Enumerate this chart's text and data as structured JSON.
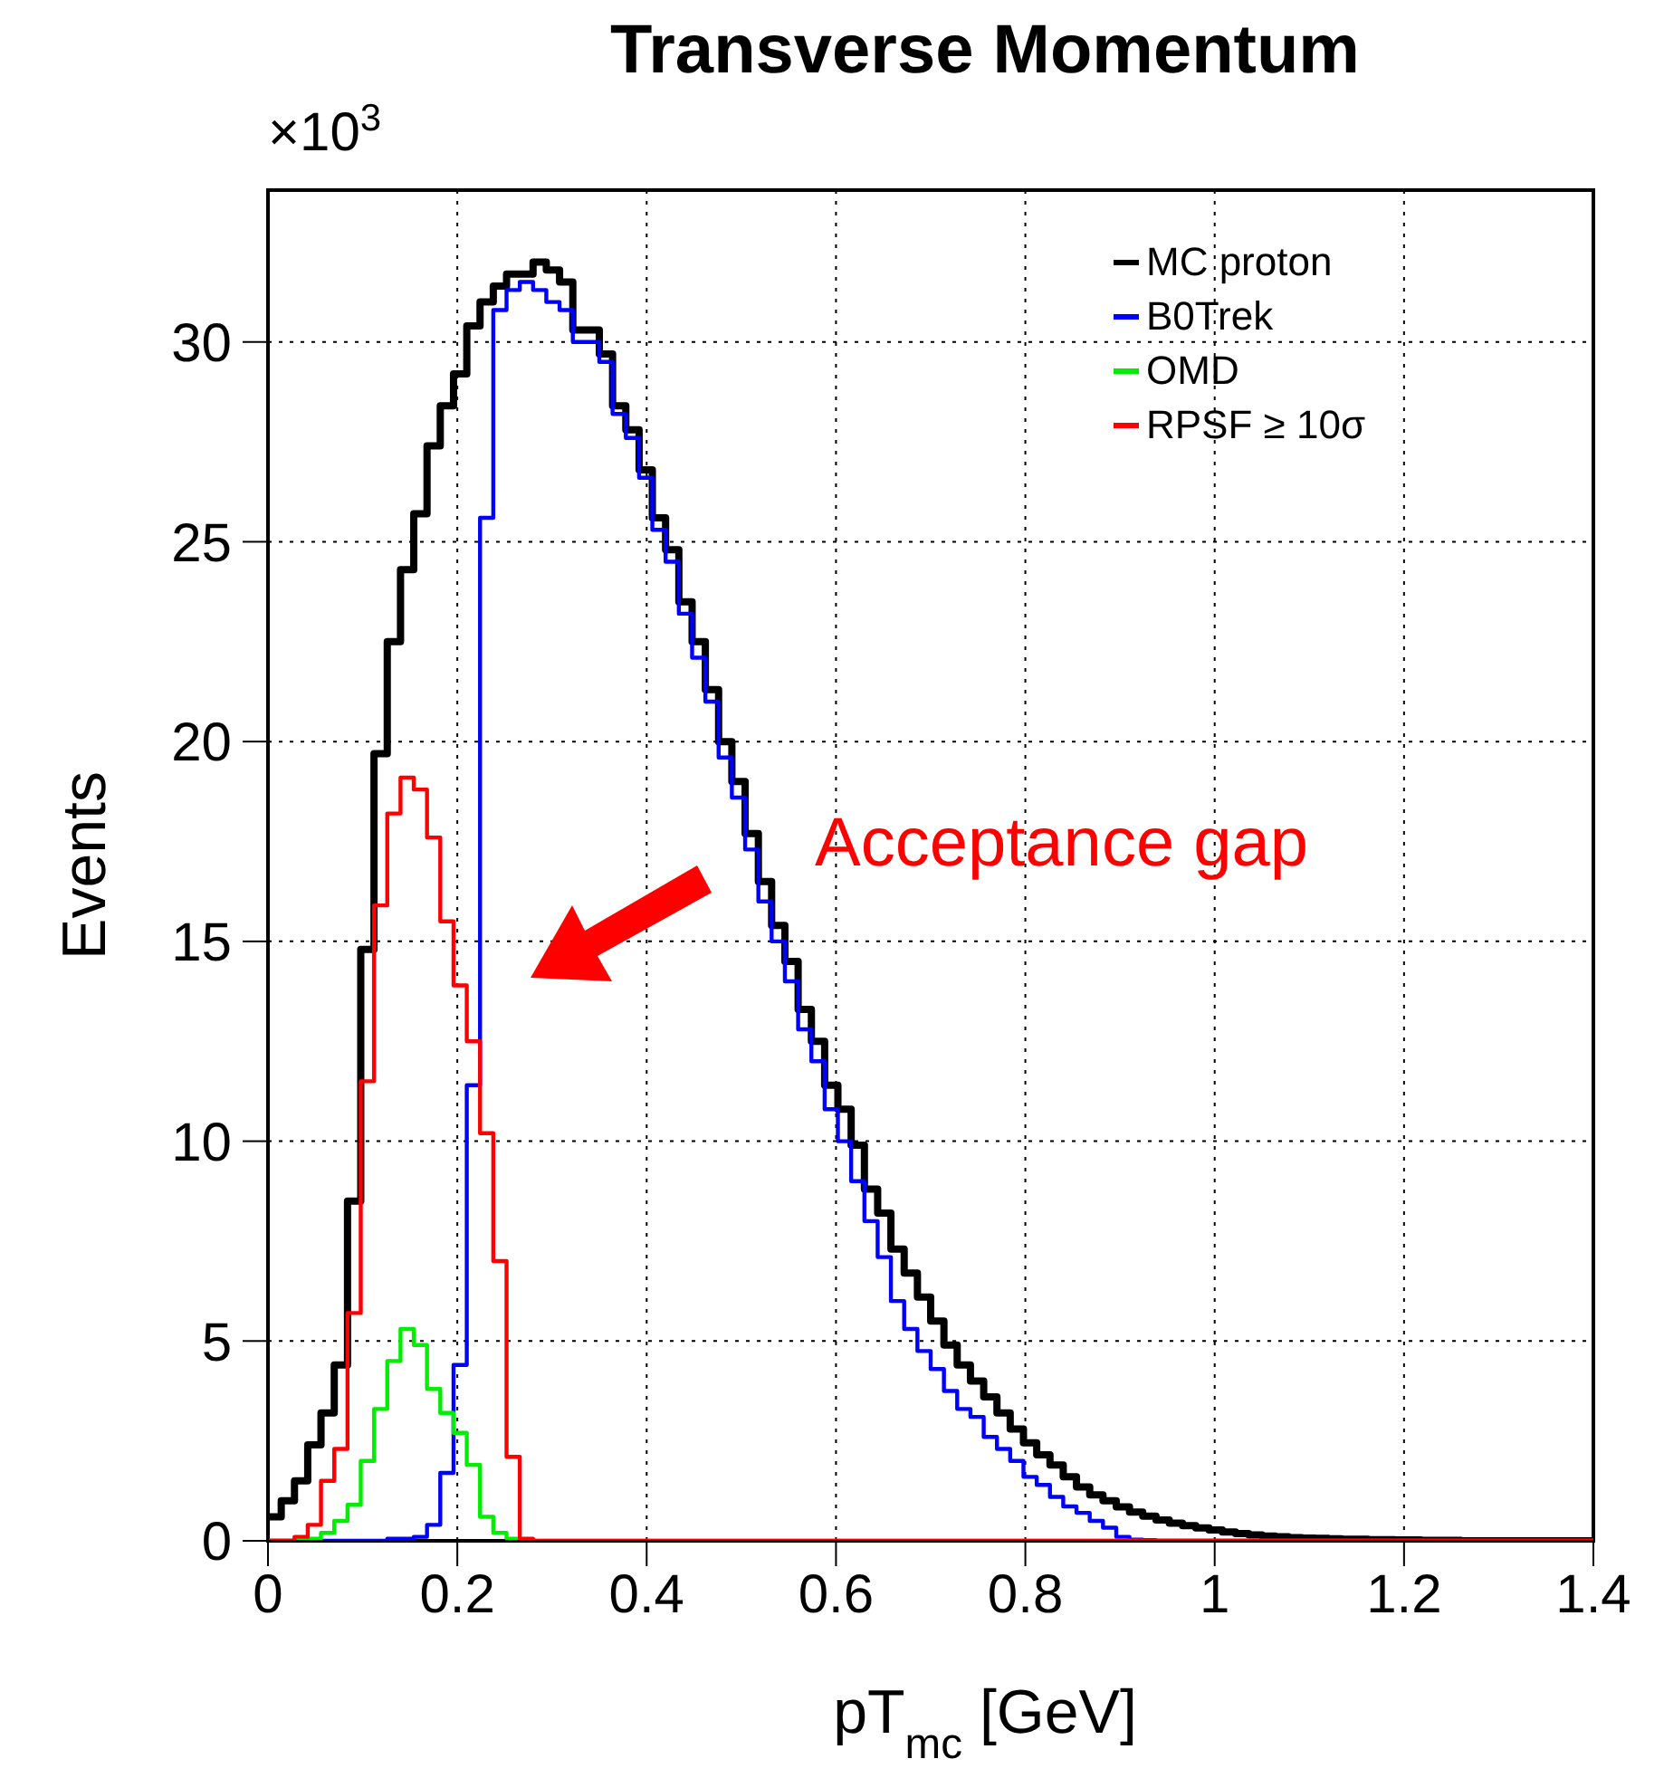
{
  "chart_data": {
    "type": "histogram",
    "title": "Transverse Momentum",
    "xlabel": "pT$_{mc}$ [GeV]",
    "ylabel": "Events",
    "annotations": [
      "×10$^{3}$",
      "Acceptance gap"
    ],
    "bins": [
      0,
      0.014,
      0.028,
      0.042,
      0.056,
      0.07,
      0.084,
      0.098,
      0.112,
      0.126,
      0.14,
      0.154,
      0.168,
      0.182,
      0.196,
      0.21,
      0.224,
      0.238,
      0.252,
      0.266,
      0.28,
      0.294,
      0.308,
      0.322,
      0.336,
      0.35,
      0.364,
      0.378,
      0.392,
      0.406,
      0.42,
      0.434,
      0.448,
      0.462,
      0.476,
      0.49,
      0.504,
      0.518,
      0.532,
      0.546,
      0.56,
      0.574,
      0.588,
      0.602,
      0.616,
      0.63,
      0.644,
      0.658,
      0.672,
      0.686,
      0.7,
      0.714,
      0.728,
      0.742,
      0.756,
      0.77,
      0.784,
      0.798,
      0.812,
      0.826,
      0.84,
      0.854,
      0.868,
      0.882,
      0.896,
      0.91,
      0.924,
      0.938,
      0.952,
      0.966,
      0.98,
      0.994,
      1.008,
      1.022,
      1.036,
      1.05,
      1.064,
      1.078,
      1.092,
      1.106,
      1.12,
      1.134,
      1.148,
      1.162,
      1.176,
      1.19,
      1.204,
      1.218,
      1.232,
      1.246,
      1.26,
      1.274,
      1.288,
      1.302,
      1.316,
      1.33,
      1.344,
      1.358,
      1.372,
      1.386,
      1.4
    ],
    "series": [
      {
        "name": "MC proton",
        "color": "#000000",
        "values": [
          0.6,
          1.0,
          1.5,
          2.4,
          3.2,
          4.4,
          8.5,
          14.8,
          19.7,
          22.5,
          24.3,
          25.7,
          27.4,
          28.4,
          29.2,
          30.4,
          31.0,
          31.4,
          31.7,
          31.7,
          32.0,
          31.8,
          31.5,
          30.3,
          30.3,
          29.7,
          28.4,
          27.8,
          26.8,
          25.6,
          24.8,
          23.5,
          22.5,
          21.3,
          20.0,
          19.0,
          17.7,
          16.5,
          15.4,
          14.5,
          13.3,
          12.5,
          11.4,
          10.8,
          9.9,
          8.8,
          8.2,
          7.3,
          6.7,
          6.1,
          5.5,
          4.9,
          4.4,
          4.0,
          3.6,
          3.2,
          2.8,
          2.45,
          2.15,
          1.9,
          1.6,
          1.35,
          1.15,
          1.0,
          0.85,
          0.72,
          0.62,
          0.52,
          0.44,
          0.38,
          0.32,
          0.27,
          0.22,
          0.18,
          0.15,
          0.12,
          0.1,
          0.08,
          0.07,
          0.06,
          0.05,
          0.04,
          0.04,
          0.03,
          0.03,
          0.02,
          0.02,
          0.01,
          0.01,
          0.01,
          0,
          0,
          0,
          0,
          0,
          0,
          0,
          0,
          0,
          0
        ]
      },
      {
        "name": "B0Trek",
        "color": "#0000ff",
        "values": [
          0,
          0,
          0,
          0,
          0,
          0,
          0,
          0,
          0,
          0.05,
          0.05,
          0.1,
          0.4,
          1.7,
          4.4,
          11.4,
          25.6,
          30.8,
          31.3,
          31.5,
          31.3,
          31.0,
          30.8,
          30.0,
          30.0,
          29.5,
          28.2,
          27.6,
          26.6,
          25.3,
          24.5,
          23.2,
          22.1,
          21.0,
          19.6,
          18.6,
          17.3,
          16.0,
          15.0,
          14.0,
          12.8,
          12.0,
          10.8,
          10.0,
          9.0,
          8.0,
          7.1,
          6.0,
          5.3,
          4.75,
          4.3,
          3.75,
          3.3,
          3.1,
          2.6,
          2.3,
          2.0,
          1.6,
          1.4,
          1.1,
          0.86,
          0.7,
          0.5,
          0.33,
          0.1,
          0.03,
          0.02,
          0,
          0,
          0,
          0,
          0,
          0,
          0,
          0,
          0,
          0,
          0,
          0,
          0,
          0,
          0,
          0,
          0,
          0,
          0,
          0,
          0,
          0,
          0,
          0,
          0,
          0,
          0,
          0,
          0,
          0,
          0,
          0,
          0
        ]
      },
      {
        "name": "OMD",
        "color": "#00ee00",
        "values": [
          0,
          0,
          0,
          0.05,
          0.2,
          0.5,
          0.9,
          2.0,
          3.3,
          4.5,
          5.3,
          4.9,
          3.8,
          3.2,
          2.7,
          1.9,
          0.6,
          0.2,
          0.05,
          0,
          0,
          0,
          0,
          0,
          0,
          0,
          0,
          0,
          0,
          0,
          0,
          0,
          0,
          0,
          0,
          0,
          0,
          0,
          0,
          0,
          0,
          0,
          0,
          0,
          0,
          0,
          0,
          0,
          0,
          0,
          0,
          0,
          0,
          0,
          0,
          0,
          0,
          0,
          0,
          0,
          0,
          0,
          0,
          0,
          0,
          0,
          0,
          0,
          0,
          0,
          0,
          0,
          0,
          0,
          0,
          0,
          0,
          0,
          0,
          0,
          0,
          0,
          0,
          0,
          0,
          0,
          0,
          0,
          0,
          0,
          0,
          0,
          0,
          0,
          0,
          0,
          0,
          0,
          0,
          0
        ]
      },
      {
        "name": "RPSF ≥ 10σ",
        "color": "#ff0000",
        "values": [
          0,
          0,
          0.1,
          0.4,
          1.5,
          2.3,
          5.7,
          11.5,
          15.9,
          18.2,
          19.1,
          18.8,
          17.6,
          15.5,
          13.9,
          12.5,
          10.2,
          7.0,
          2.1,
          0.05,
          0,
          0,
          0,
          0,
          0,
          0,
          0,
          0,
          0,
          0,
          0,
          0,
          0,
          0,
          0,
          0,
          0,
          0,
          0,
          0,
          0,
          0,
          0,
          0,
          0,
          0,
          0,
          0,
          0,
          0,
          0,
          0,
          0,
          0,
          0,
          0,
          0,
          0,
          0,
          0,
          0,
          0,
          0,
          0,
          0,
          0,
          0,
          0,
          0,
          0,
          0,
          0,
          0,
          0,
          0,
          0,
          0,
          0,
          0,
          0,
          0,
          0,
          0,
          0,
          0,
          0,
          0,
          0,
          0,
          0,
          0,
          0,
          0,
          0,
          0,
          0,
          0,
          0,
          0,
          0
        ]
      }
    ],
    "xlim": [
      0,
      1.4
    ],
    "xticks": [
      0,
      0.2,
      0.4,
      0.6,
      0.8,
      1,
      1.2,
      1.4
    ],
    "ylim": [
      0,
      33.8
    ],
    "yticks": [
      0,
      5,
      10,
      15,
      20,
      25,
      30
    ],
    "grid": true,
    "legend": "top right"
  }
}
